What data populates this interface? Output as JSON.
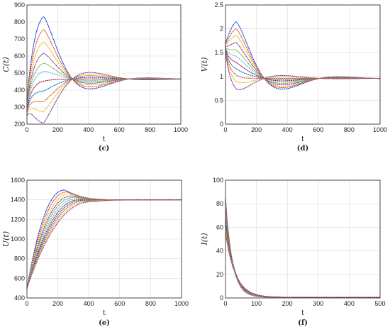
{
  "palette": [
    "#0a2fd8",
    "#d95319",
    "#edb120",
    "#7e2f8e",
    "#77ac30",
    "#4dbeee",
    "#a2142f",
    "#0072bd",
    "#d95319",
    "#edb120",
    "#7e2f8e",
    "#77ac30"
  ],
  "chart_data": [
    {
      "type": "line",
      "panel": "c",
      "caption": "(c)",
      "xlabel": "t",
      "ylabel": "C(t)",
      "xlim": [
        0,
        1000
      ],
      "ylim": [
        200,
        900
      ],
      "xticks": [
        0,
        200,
        400,
        600,
        800,
        1000
      ],
      "yticks": [
        200,
        300,
        400,
        500,
        600,
        700,
        800,
        900
      ],
      "grid": true,
      "series_summary": {
        "count": 11,
        "t0": 0,
        "y0_values": [
          350,
          340,
          330,
          320,
          310,
          300,
          290,
          280,
          270,
          260,
          250
        ],
        "peak_t": 110,
        "peak_values": [
          855,
          775,
          700,
          630,
          570,
          520,
          460,
          400,
          335,
          275,
          205
        ],
        "second_t": 480,
        "second_amp_scale": 0.12,
        "steady": 465
      }
    },
    {
      "type": "line",
      "panel": "d",
      "caption": "(d)",
      "xlabel": "t",
      "ylabel": "V(t)",
      "xlim": [
        0,
        1000
      ],
      "ylim": [
        0,
        2.5
      ],
      "xticks": [
        0,
        200,
        400,
        600,
        800,
        1000
      ],
      "yticks": [
        0,
        0.5,
        1,
        1.5,
        2,
        2.5
      ],
      "grid": true,
      "series_summary": {
        "count": 11,
        "t0": 0,
        "y0_values": [
          1.7,
          1.68,
          1.66,
          1.64,
          1.62,
          1.6,
          1.58,
          1.56,
          1.54,
          1.52,
          1.5
        ],
        "peak_t": 70,
        "peak_values": [
          2.22,
          2.05,
          1.9,
          1.72,
          1.55,
          1.4,
          1.25,
          1.1,
          0.95,
          0.8,
          0.62
        ],
        "second_t": 430,
        "second_amp_scale": 0.15,
        "steady": 0.96
      }
    },
    {
      "type": "line",
      "panel": "e",
      "caption": "(e)",
      "xlabel": "t",
      "ylabel": "U(t)",
      "xlim": [
        0,
        1000
      ],
      "ylim": [
        400,
        1600
      ],
      "xticks": [
        0,
        200,
        400,
        600,
        800,
        1000
      ],
      "yticks": [
        400,
        600,
        800,
        1000,
        1200,
        1400,
        1600
      ],
      "grid": true,
      "series_summary": {
        "count": 11,
        "t0": 0,
        "y0": 500,
        "peak_t_values": [
          245,
          260,
          275,
          290,
          305,
          320,
          340,
          360,
          380,
          400,
          420
        ],
        "peak_values": [
          1500,
          1480,
          1460,
          1440,
          1425,
          1410,
          1400,
          1395,
          1390,
          1385,
          1380
        ],
        "steady": 1400
      }
    },
    {
      "type": "line",
      "panel": "f",
      "caption": "(f)",
      "xlabel": "t",
      "ylabel": "I(t)",
      "xlim": [
        0,
        500
      ],
      "ylim": [
        0,
        100
      ],
      "xticks": [
        0,
        100,
        200,
        300,
        400,
        500
      ],
      "yticks": [
        0,
        20,
        40,
        60,
        80,
        100
      ],
      "grid": true,
      "series_summary": {
        "count": 11,
        "t0": 0,
        "y0_values": [
          85,
          82,
          79,
          76,
          73,
          70,
          67,
          64,
          61,
          58,
          55
        ],
        "decay_tau_values": [
          22,
          23,
          24,
          25,
          26,
          27,
          28,
          29,
          30,
          31,
          32
        ],
        "tail": 0.5
      }
    }
  ]
}
